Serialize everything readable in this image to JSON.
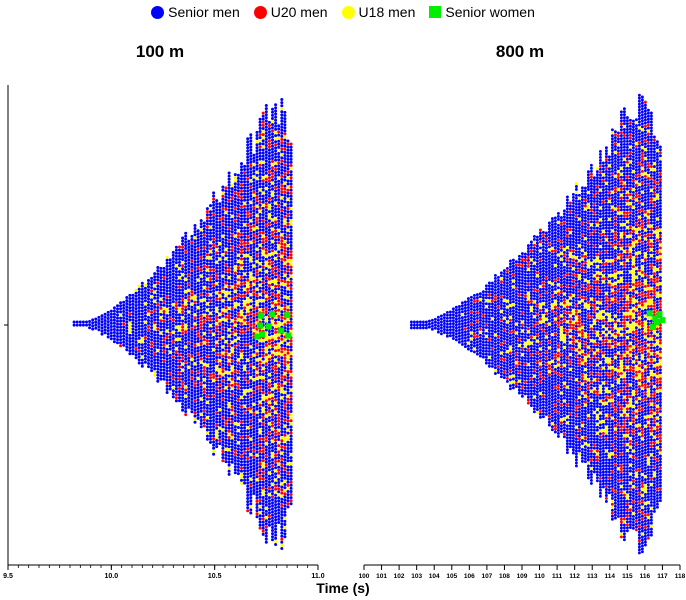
{
  "legend": {
    "items": [
      {
        "label": "Senior men",
        "color": "#0000ff",
        "shape": "circle"
      },
      {
        "label": "U20 men",
        "color": "#ff0000",
        "shape": "circle"
      },
      {
        "label": "U18 men",
        "color": "#ffff00",
        "shape": "circle"
      },
      {
        "label": "Senior women",
        "color": "#00ee00",
        "shape": "square"
      }
    ]
  },
  "x_axis_label": "Time (s)",
  "chart_data": [
    {
      "type": "scatter",
      "subtype": "violin-beeswarm",
      "title": "100 m",
      "xlabel": "Time (s)",
      "xlim": [
        9.5,
        11.0
      ],
      "x_ticks_labeled": [
        "9.5",
        "10.0",
        "10.5",
        "11.0"
      ],
      "x_tick_values": [
        9.5,
        10.0,
        10.5,
        11.0
      ],
      "minor_tick_step": 0.05,
      "y_axis": "none",
      "series": [
        {
          "name": "Senior men",
          "color": "#0000ff",
          "x_range": [
            9.82,
            10.88
          ],
          "shape": "widening spread, peak density near 10.8"
        },
        {
          "name": "U20 men",
          "color": "#ff0000",
          "x_range": [
            9.9,
            10.88
          ]
        },
        {
          "name": "U18 men",
          "color": "#ffff00",
          "x_range": [
            10.0,
            10.88
          ]
        },
        {
          "name": "Senior women",
          "color": "#00ee00",
          "x_range": [
            10.65,
            10.88
          ]
        }
      ]
    },
    {
      "type": "scatter",
      "subtype": "violin-beeswarm",
      "title": "800 m",
      "xlabel": "Time (s)",
      "xlim": [
        100,
        118
      ],
      "x_ticks_labeled": [
        "100",
        "101",
        "102",
        "103",
        "104",
        "105",
        "106",
        "107",
        "108",
        "109",
        "110",
        "111",
        "112",
        "113",
        "114",
        "115",
        "116",
        "117",
        "118"
      ],
      "x_tick_values": [
        100,
        101,
        102,
        103,
        104,
        105,
        106,
        107,
        108,
        109,
        110,
        111,
        112,
        113,
        114,
        115,
        116,
        117,
        118
      ],
      "y_axis": "none",
      "series": [
        {
          "name": "Senior men",
          "color": "#0000ff",
          "x_range": [
            102.6,
            117.0
          ],
          "shape": "widening spread, peak density near 115.5"
        },
        {
          "name": "U20 men",
          "color": "#ff0000",
          "x_range": [
            102.6,
            117.0
          ]
        },
        {
          "name": "U18 men",
          "color": "#ffff00",
          "x_range": [
            104.0,
            117.0
          ]
        },
        {
          "name": "Senior women",
          "color": "#00ee00",
          "x_range": [
            115.8,
            117.0
          ]
        }
      ]
    }
  ]
}
